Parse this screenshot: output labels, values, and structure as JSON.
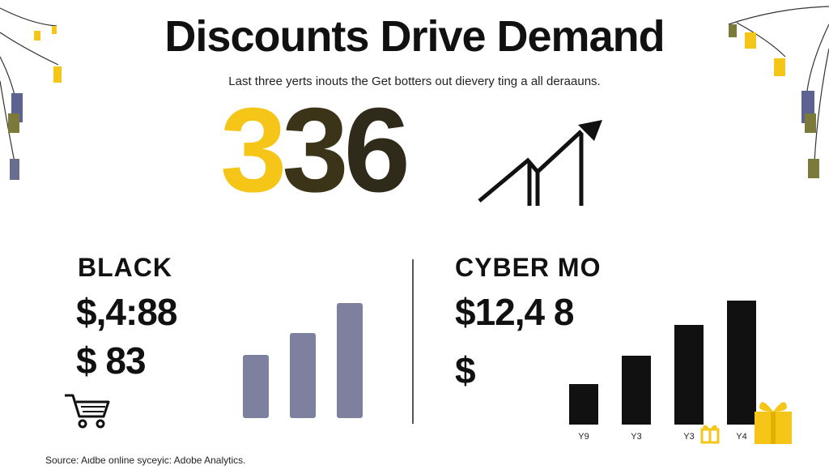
{
  "title": "Discounts Drive Demand",
  "subtitle": "Last three yerts inouts the Get botters out dievery ting a all deraauns.",
  "headline": {
    "digits": [
      "3",
      "3",
      "6"
    ],
    "colors": [
      "#f5c518",
      "#3b3419",
      "#2f2a1a"
    ],
    "icon": "upward-trend-arrow-icon"
  },
  "panels": {
    "black": {
      "label": "BLACK",
      "amount_primary": "$,4:88",
      "amount_secondary": "$ 83",
      "icon": "shopping-cart-icon"
    },
    "cyber": {
      "label": "CYBER MO",
      "amount_primary": "$12,4 8",
      "amount_secondary": "$",
      "icons": [
        "gift-icon",
        "gift-icon"
      ]
    }
  },
  "source": "Source: Aιdbe online syceyic: Adobe Analytics.",
  "colors": {
    "accent_yellow": "#f5c518",
    "bar_slate": "#7d819f",
    "bar_black": "#111111"
  },
  "chart_data": [
    {
      "type": "bar",
      "panel": "BLACK",
      "categories": [
        "",
        "",
        ""
      ],
      "values": [
        78,
        105,
        142
      ],
      "ylim": [
        0,
        150
      ],
      "grid": false,
      "color": "#7d819f"
    },
    {
      "type": "bar",
      "panel": "CYBER MO",
      "categories": [
        "Y9",
        "Y3",
        "Y3",
        "Y4"
      ],
      "values": [
        50,
        85,
        123,
        153
      ],
      "ylim": [
        0,
        160
      ],
      "grid": false,
      "color": "#111111"
    }
  ]
}
